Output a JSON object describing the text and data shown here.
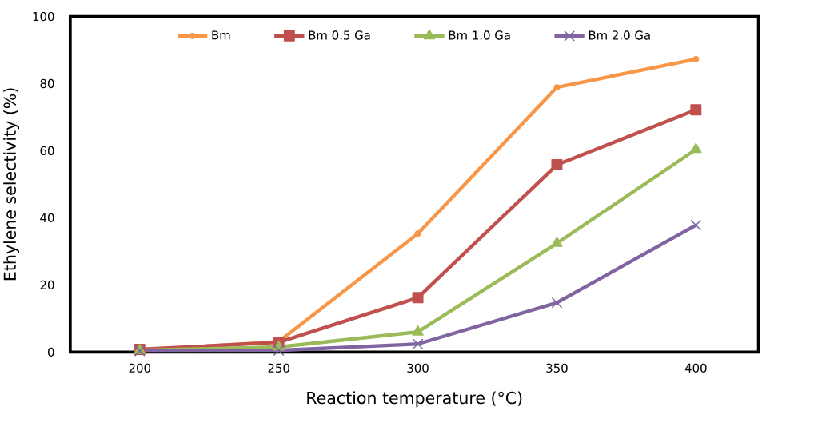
{
  "chart_data": {
    "type": "line",
    "xlabel": "Reaction temperature (°C)",
    "ylabel": "Ethylene selectivity (%)",
    "categories": [
      "200",
      "250",
      "300",
      "350",
      "400"
    ],
    "series": [
      {
        "name": "Bm",
        "color": "#f79646",
        "marker": "circle",
        "values": [
          0.5,
          3.1,
          35.3,
          78.9,
          87.3
        ]
      },
      {
        "name": "Bm 0.5 Ga",
        "color": "#c0504d",
        "marker": "square",
        "values": [
          0.8,
          2.9,
          16.2,
          55.8,
          72.2
        ]
      },
      {
        "name": "Bm 1.0 Ga",
        "color": "#9bbb59",
        "marker": "triangle",
        "values": [
          0.5,
          1.5,
          6.0,
          32.4,
          60.4
        ]
      },
      {
        "name": "Bm 2.0 Ga",
        "color": "#8064a2",
        "marker": "cross",
        "values": [
          0.3,
          0.5,
          2.4,
          14.7,
          37.8
        ]
      }
    ],
    "ylim": [
      0,
      100
    ],
    "yticks": [
      0,
      20,
      40,
      60,
      80,
      100
    ],
    "grid": false,
    "legend": "top"
  }
}
